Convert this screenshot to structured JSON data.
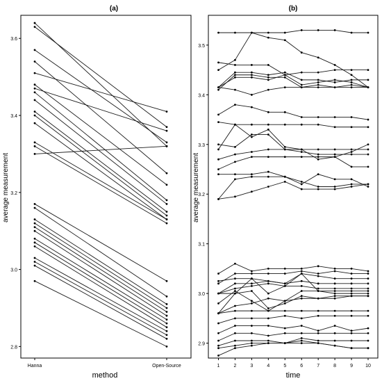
{
  "chart_data": [
    {
      "type": "line",
      "title": "(a)",
      "xlabel": "method",
      "ylabel": "average measurement",
      "categories": [
        "Hanna",
        "Open-Source"
      ],
      "ylim": [
        2.77,
        3.66
      ],
      "yticks": [
        2.8,
        3.0,
        3.2,
        3.4,
        3.6
      ],
      "grid": false,
      "series": [
        {
          "values": [
            3.64,
            3.32
          ]
        },
        {
          "values": [
            3.63,
            3.37
          ]
        },
        {
          "values": [
            3.57,
            3.33
          ]
        },
        {
          "values": [
            3.54,
            3.25
          ]
        },
        {
          "values": [
            3.51,
            3.41
          ]
        },
        {
          "values": [
            3.48,
            3.22
          ]
        },
        {
          "values": [
            3.47,
            3.36
          ]
        },
        {
          "values": [
            3.46,
            3.18
          ]
        },
        {
          "values": [
            3.44,
            3.17
          ]
        },
        {
          "values": [
            3.41,
            3.15
          ]
        },
        {
          "values": [
            3.4,
            3.14
          ]
        },
        {
          "values": [
            3.38,
            3.13
          ]
        },
        {
          "values": [
            3.33,
            3.13
          ]
        },
        {
          "values": [
            3.32,
            3.12
          ]
        },
        {
          "values": [
            3.3,
            3.32
          ]
        },
        {
          "values": [
            3.17,
            2.97
          ]
        },
        {
          "values": [
            3.16,
            2.93
          ]
        },
        {
          "values": [
            3.13,
            2.91
          ]
        },
        {
          "values": [
            3.12,
            2.9
          ]
        },
        {
          "values": [
            3.11,
            2.89
          ]
        },
        {
          "values": [
            3.1,
            2.88
          ]
        },
        {
          "values": [
            3.08,
            2.87
          ]
        },
        {
          "values": [
            3.07,
            2.86
          ]
        },
        {
          "values": [
            3.06,
            2.85
          ]
        },
        {
          "values": [
            3.03,
            2.84
          ]
        },
        {
          "values": [
            3.02,
            2.83
          ]
        },
        {
          "values": [
            3.01,
            2.82
          ]
        },
        {
          "values": [
            2.97,
            2.8
          ]
        }
      ]
    },
    {
      "type": "line",
      "title": "(b)",
      "xlabel": "time",
      "ylabel": "average measurement",
      "x": [
        1,
        2,
        3,
        4,
        5,
        6,
        7,
        8,
        9,
        10
      ],
      "ylim": [
        2.87,
        3.56
      ],
      "yticks": [
        2.9,
        3.0,
        3.1,
        3.2,
        3.3,
        3.4,
        3.5
      ],
      "grid": false,
      "series": [
        {
          "values": [
            3.525,
            3.525,
            3.525,
            3.525,
            3.525,
            3.53,
            3.53,
            3.53,
            3.525,
            3.525
          ]
        },
        {
          "values": [
            3.45,
            3.47,
            3.525,
            3.515,
            3.51,
            3.485,
            3.475,
            3.46,
            3.44,
            3.415
          ]
        },
        {
          "values": [
            3.465,
            3.46,
            3.46,
            3.46,
            3.44,
            3.445,
            3.445,
            3.45,
            3.45,
            3.45
          ]
        },
        {
          "values": [
            3.415,
            3.445,
            3.445,
            3.44,
            3.445,
            3.43,
            3.43,
            3.425,
            3.43,
            3.43
          ]
        },
        {
          "values": [
            3.41,
            3.44,
            3.44,
            3.435,
            3.435,
            3.415,
            3.42,
            3.415,
            3.42,
            3.415
          ]
        },
        {
          "values": [
            3.415,
            3.435,
            3.435,
            3.43,
            3.44,
            3.42,
            3.425,
            3.43,
            3.425,
            3.415
          ]
        },
        {
          "values": [
            3.415,
            3.41,
            3.4,
            3.41,
            3.415,
            3.415,
            3.415,
            3.415,
            3.415,
            3.415
          ]
        },
        {
          "values": [
            3.36,
            3.38,
            3.375,
            3.365,
            3.365,
            3.355,
            3.355,
            3.355,
            3.355,
            3.35
          ]
        },
        {
          "values": [
            3.345,
            3.34,
            3.34,
            3.34,
            3.34,
            3.34,
            3.34,
            3.335,
            3.335,
            3.335
          ]
        },
        {
          "values": [
            3.29,
            3.34,
            3.315,
            3.33,
            3.295,
            3.29,
            3.27,
            3.275,
            3.285,
            3.3
          ]
        },
        {
          "values": [
            3.3,
            3.295,
            3.32,
            3.32,
            3.29,
            3.285,
            3.28,
            3.28,
            3.28,
            3.28
          ]
        },
        {
          "values": [
            3.27,
            3.28,
            3.285,
            3.29,
            3.29,
            3.29,
            3.29,
            3.29,
            3.29,
            3.29
          ]
        },
        {
          "values": [
            3.25,
            3.265,
            3.275,
            3.275,
            3.275,
            3.275,
            3.275,
            3.275,
            3.255,
            3.255
          ]
        },
        {
          "values": [
            3.24,
            3.24,
            3.24,
            3.245,
            3.235,
            3.22,
            3.24,
            3.23,
            3.23,
            3.215
          ]
        },
        {
          "values": [
            3.19,
            3.23,
            3.235,
            3.235,
            3.235,
            3.225,
            3.215,
            3.215,
            3.22,
            3.22
          ]
        },
        {
          "values": [
            3.19,
            3.195,
            3.205,
            3.215,
            3.225,
            3.21,
            3.21,
            3.21,
            3.215,
            3.22
          ]
        },
        {
          "values": [
            3.04,
            3.06,
            3.045,
            3.05,
            3.05,
            3.05,
            3.055,
            3.05,
            3.05,
            3.045
          ]
        },
        {
          "values": [
            3.02,
            3.04,
            3.04,
            3.04,
            3.04,
            3.045,
            3.04,
            3.045,
            3.04,
            3.04
          ]
        },
        {
          "values": [
            3.025,
            3.03,
            3.03,
            3.025,
            3.02,
            3.04,
            3.035,
            3.03,
            3.03,
            3.03
          ]
        },
        {
          "values": [
            3.0,
            3.02,
            3.02,
            3.025,
            3.02,
            3.025,
            3.02,
            3.02,
            3.02,
            3.02
          ]
        },
        {
          "values": [
            3.0,
            3.01,
            3.015,
            3.02,
            3.015,
            3.015,
            3.01,
            3.01,
            3.01,
            3.01
          ]
        },
        {
          "values": [
            2.96,
            3.0,
            3.03,
            3.0,
            3.015,
            3.04,
            3.005,
            3.0,
            3.0,
            3.0
          ]
        },
        {
          "values": [
            2.98,
            3.005,
            2.985,
            2.965,
            2.985,
            3.005,
            3.005,
            3.005,
            3.005,
            3.005
          ]
        },
        {
          "values": [
            3.0,
            3.0,
            3.005,
            2.97,
            2.98,
            2.995,
            2.99,
            2.99,
            2.995,
            2.995
          ]
        },
        {
          "values": [
            2.96,
            2.975,
            2.98,
            2.99,
            2.985,
            2.99,
            2.99,
            2.995,
            2.995,
            2.995
          ]
        },
        {
          "values": [
            2.96,
            2.965,
            2.965,
            2.965,
            2.965,
            2.965,
            2.965,
            2.965,
            2.965,
            2.965
          ]
        },
        {
          "values": [
            2.94,
            2.95,
            2.95,
            2.95,
            2.955,
            2.95,
            2.955,
            2.955,
            2.955,
            2.955
          ]
        },
        {
          "values": [
            2.92,
            2.935,
            2.935,
            2.935,
            2.93,
            2.935,
            2.925,
            2.935,
            2.925,
            2.93
          ]
        },
        {
          "values": [
            2.905,
            2.92,
            2.92,
            2.915,
            2.92,
            2.92,
            2.92,
            2.92,
            2.92,
            2.92
          ]
        },
        {
          "values": [
            2.895,
            2.905,
            2.905,
            2.905,
            2.9,
            2.91,
            2.905,
            2.905,
            2.905,
            2.905
          ]
        },
        {
          "values": [
            2.89,
            2.895,
            2.9,
            2.9,
            2.9,
            2.905,
            2.9,
            2.895,
            2.89,
            2.89
          ]
        },
        {
          "values": [
            2.875,
            2.89,
            2.895,
            2.9,
            2.9,
            2.9,
            2.9,
            2.895,
            2.89,
            2.89
          ]
        }
      ]
    }
  ]
}
